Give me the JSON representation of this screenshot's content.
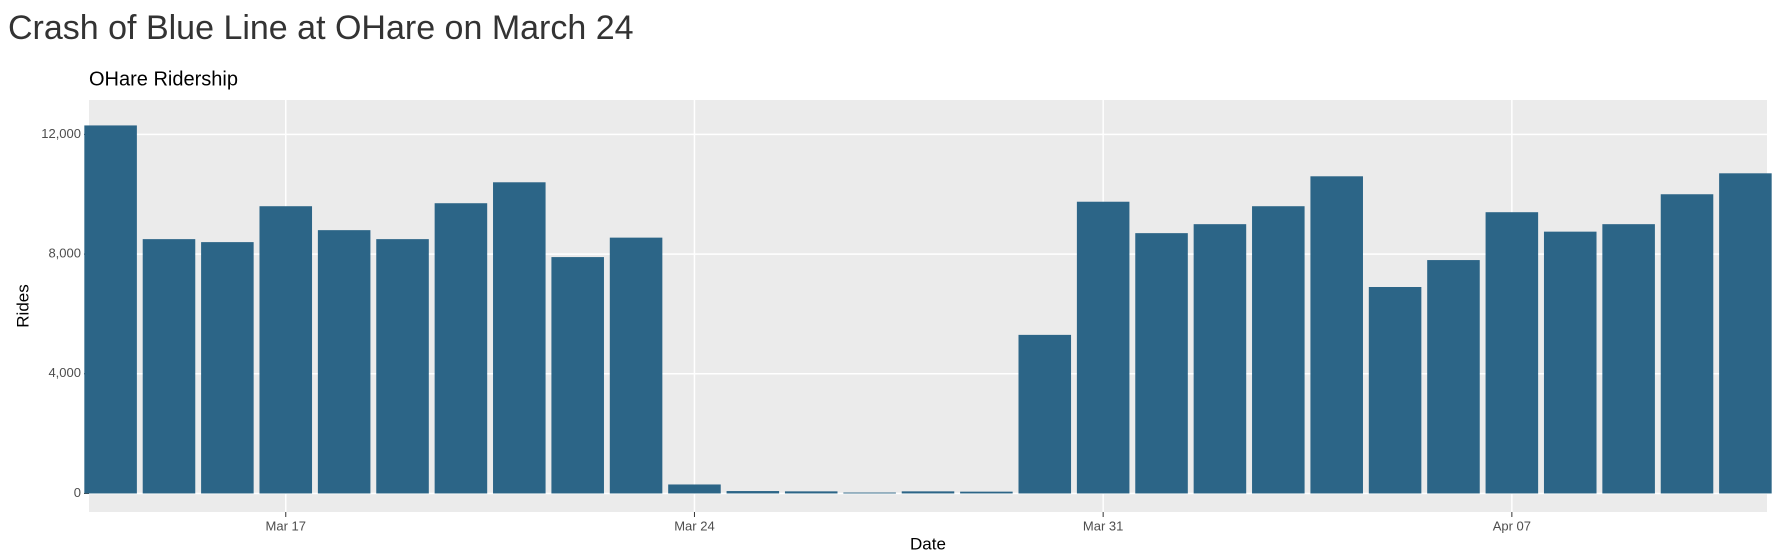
{
  "chart_data": {
    "type": "bar",
    "title": "Crash of Blue Line at OHare on March 24",
    "subtitle": "OHare Ridership",
    "x_label": "Date",
    "y_label": "Rides",
    "categories": [
      "Mar 14",
      "Mar 15",
      "Mar 16",
      "Mar 17",
      "Mar 18",
      "Mar 19",
      "Mar 20",
      "Mar 21",
      "Mar 22",
      "Mar 23",
      "Mar 24",
      "Mar 25",
      "Mar 26",
      "Mar 27",
      "Mar 28",
      "Mar 29",
      "Mar 30",
      "Mar 31",
      "Apr 01",
      "Apr 02",
      "Apr 03",
      "Apr 04",
      "Apr 05",
      "Apr 06",
      "Apr 07",
      "Apr 08",
      "Apr 09",
      "Apr 10",
      "Apr 11"
    ],
    "values": [
      12300,
      8500,
      8400,
      9600,
      8800,
      8500,
      9700,
      10400,
      7900,
      8550,
      300,
      80,
      70,
      30,
      70,
      60,
      5300,
      9750,
      8700,
      9000,
      9600,
      10600,
      6900,
      7800,
      9400,
      8750,
      9000,
      10000,
      10700
    ],
    "color": "#2c6587",
    "xticks": [
      "Mar 17",
      "Mar 24",
      "Mar 31",
      "Apr 07"
    ],
    "ylim": [
      -620,
      13150
    ],
    "yticks": [
      0,
      {
        "value": 4000,
        "label": "4,000"
      },
      {
        "value": 8000,
        "label": "8,000"
      },
      {
        "value": 12000,
        "label": "12,000"
      }
    ],
    "grid": true
  }
}
